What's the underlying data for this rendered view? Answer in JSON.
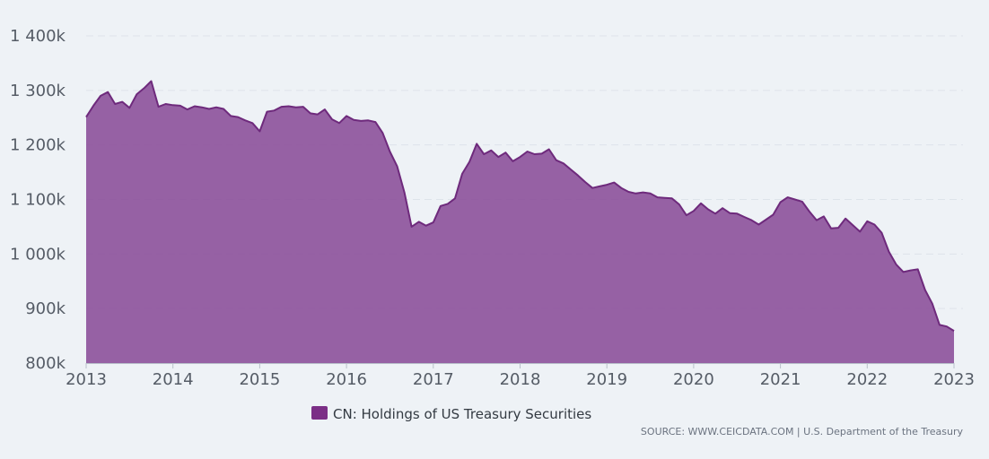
{
  "chart_data": {
    "type": "area",
    "series": [
      {
        "name": "CN: Holdings of US Treasury Securities",
        "color": "#8a4c98",
        "data": [
          [
            "2013-01",
            1251
          ],
          [
            "2013-02",
            1272
          ],
          [
            "2013-03",
            1290
          ],
          [
            "2013-04",
            1297
          ],
          [
            "2013-05",
            1275
          ],
          [
            "2013-06",
            1279
          ],
          [
            "2013-07",
            1268
          ],
          [
            "2013-08",
            1293
          ],
          [
            "2013-09",
            1304
          ],
          [
            "2013-10",
            1317
          ],
          [
            "2013-11",
            1270
          ],
          [
            "2013-12",
            1275
          ],
          [
            "2014-01",
            1273
          ],
          [
            "2014-02",
            1272
          ],
          [
            "2014-03",
            1265
          ],
          [
            "2014-04",
            1271
          ],
          [
            "2014-05",
            1269
          ],
          [
            "2014-06",
            1266
          ],
          [
            "2014-07",
            1269
          ],
          [
            "2014-08",
            1266
          ],
          [
            "2014-09",
            1253
          ],
          [
            "2014-10",
            1251
          ],
          [
            "2014-11",
            1245
          ],
          [
            "2014-12",
            1240
          ],
          [
            "2015-01",
            1225
          ],
          [
            "2015-02",
            1261
          ],
          [
            "2015-03",
            1263
          ],
          [
            "2015-04",
            1270
          ],
          [
            "2015-05",
            1271
          ],
          [
            "2015-06",
            1269
          ],
          [
            "2015-07",
            1270
          ],
          [
            "2015-08",
            1258
          ],
          [
            "2015-09",
            1256
          ],
          [
            "2015-10",
            1265
          ],
          [
            "2015-11",
            1247
          ],
          [
            "2015-12",
            1240
          ],
          [
            "2016-01",
            1253
          ],
          [
            "2016-02",
            1246
          ],
          [
            "2016-03",
            1244
          ],
          [
            "2016-04",
            1245
          ],
          [
            "2016-05",
            1242
          ],
          [
            "2016-06",
            1222
          ],
          [
            "2016-07",
            1188
          ],
          [
            "2016-08",
            1161
          ],
          [
            "2016-09",
            1113
          ],
          [
            "2016-10",
            1050
          ],
          [
            "2016-11",
            1059
          ],
          [
            "2016-12",
            1052
          ],
          [
            "2017-01",
            1058
          ],
          [
            "2017-02",
            1088
          ],
          [
            "2017-03",
            1092
          ],
          [
            "2017-04",
            1102
          ],
          [
            "2017-05",
            1147
          ],
          [
            "2017-06",
            1169
          ],
          [
            "2017-07",
            1202
          ],
          [
            "2017-08",
            1183
          ],
          [
            "2017-09",
            1190
          ],
          [
            "2017-10",
            1178
          ],
          [
            "2017-11",
            1186
          ],
          [
            "2017-12",
            1170
          ],
          [
            "2018-01",
            1178
          ],
          [
            "2018-02",
            1188
          ],
          [
            "2018-03",
            1183
          ],
          [
            "2018-04",
            1184
          ],
          [
            "2018-05",
            1192
          ],
          [
            "2018-06",
            1172
          ],
          [
            "2018-07",
            1166
          ],
          [
            "2018-08",
            1155
          ],
          [
            "2018-09",
            1144
          ],
          [
            "2018-10",
            1132
          ],
          [
            "2018-11",
            1121
          ],
          [
            "2018-12",
            1124
          ],
          [
            "2019-01",
            1127
          ],
          [
            "2019-02",
            1131
          ],
          [
            "2019-03",
            1121
          ],
          [
            "2019-04",
            1114
          ],
          [
            "2019-05",
            1111
          ],
          [
            "2019-06",
            1113
          ],
          [
            "2019-07",
            1111
          ],
          [
            "2019-08",
            1104
          ],
          [
            "2019-09",
            1103
          ],
          [
            "2019-10",
            1102
          ],
          [
            "2019-11",
            1091
          ],
          [
            "2019-12",
            1071
          ],
          [
            "2020-01",
            1079
          ],
          [
            "2020-02",
            1093
          ],
          [
            "2020-03",
            1082
          ],
          [
            "2020-04",
            1074
          ],
          [
            "2020-05",
            1084
          ],
          [
            "2020-06",
            1075
          ],
          [
            "2020-07",
            1074
          ],
          [
            "2020-08",
            1068
          ],
          [
            "2020-09",
            1062
          ],
          [
            "2020-10",
            1054
          ],
          [
            "2020-11",
            1063
          ],
          [
            "2020-12",
            1072
          ],
          [
            "2021-01",
            1095
          ],
          [
            "2021-02",
            1104
          ],
          [
            "2021-03",
            1100
          ],
          [
            "2021-04",
            1096
          ],
          [
            "2021-05",
            1078
          ],
          [
            "2021-06",
            1062
          ],
          [
            "2021-07",
            1069
          ],
          [
            "2021-08",
            1047
          ],
          [
            "2021-09",
            1048
          ],
          [
            "2021-10",
            1065
          ],
          [
            "2021-11",
            1053
          ],
          [
            "2021-12",
            1041
          ],
          [
            "2022-01",
            1060
          ],
          [
            "2022-02",
            1054
          ],
          [
            "2022-03",
            1039
          ],
          [
            "2022-04",
            1004
          ],
          [
            "2022-05",
            981
          ],
          [
            "2022-06",
            967
          ],
          [
            "2022-07",
            970
          ],
          [
            "2022-08",
            972
          ],
          [
            "2022-09",
            934
          ],
          [
            "2022-10",
            909
          ],
          [
            "2022-11",
            870
          ],
          [
            "2022-12",
            867
          ],
          [
            "2023-01",
            859
          ]
        ]
      }
    ],
    "xlabel": "",
    "ylabel": "",
    "x_ticks": [
      "2013",
      "2014",
      "2015",
      "2016",
      "2017",
      "2018",
      "2019",
      "2020",
      "2021",
      "2022",
      "2023"
    ],
    "y_ticks": [
      {
        "value": 800,
        "label": "800k"
      },
      {
        "value": 900,
        "label": "900k"
      },
      {
        "value": 1000,
        "label": "1 000k"
      },
      {
        "value": 1100,
        "label": "1 100k"
      },
      {
        "value": 1200,
        "label": "1 200k"
      },
      {
        "value": 1300,
        "label": "1 300k"
      },
      {
        "value": 1400,
        "label": "1 400k"
      }
    ],
    "xlim": [
      "2013-01",
      "2023-01"
    ],
    "ylim": [
      800,
      1400
    ],
    "grid": true,
    "legend_position": "bottom-center"
  },
  "legend": {
    "label": "CN: Holdings of US Treasury Securities",
    "color": "#7b2f86"
  },
  "source": {
    "text": "SOURCE: WWW.CEICDATA.COM | U.S. Department of the Treasury"
  },
  "colors": {
    "grid": "#dde3ea",
    "axis": "#b8c0ca"
  }
}
